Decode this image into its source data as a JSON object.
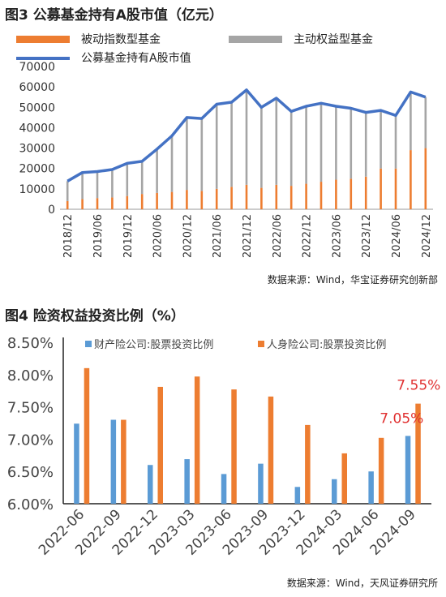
{
  "chart_data": [
    {
      "type": "bar",
      "title": "图3 公募基金持有A股市值（亿元）",
      "source": "数据来源：Wind，华宝证券研究创新部",
      "categories": [
        "2018/12",
        "2019/03",
        "2019/06",
        "2019/09",
        "2019/12",
        "2020/03",
        "2020/06",
        "2020/09",
        "2020/12",
        "2021/03",
        "2021/06",
        "2021/09",
        "2021/12",
        "2022/03",
        "2022/06",
        "2022/09",
        "2022/12",
        "2023/03",
        "2023/06",
        "2023/09",
        "2023/12",
        "2024/03",
        "2024/06",
        "2024/09",
        "2024/12"
      ],
      "tick_labels": [
        "2018/12",
        "2019/06",
        "2019/12",
        "2020/06",
        "2020/12",
        "2021/06",
        "2021/12",
        "2022/06",
        "2022/12",
        "2023/06",
        "2023/12",
        "2024/06",
        "2024/12"
      ],
      "ylim": [
        0,
        70000
      ],
      "yticks": [
        "0",
        "10000",
        "20000",
        "30000",
        "40000",
        "50000",
        "60000",
        "70000"
      ],
      "series": [
        {
          "name": "被动指数型基金",
          "kind": "bar",
          "color": "#ED7D31",
          "values": [
            4000,
            5000,
            5500,
            5800,
            6500,
            7500,
            8000,
            8500,
            9500,
            9000,
            10000,
            11000,
            12000,
            10500,
            12000,
            11500,
            12500,
            13500,
            14500,
            15000,
            16000,
            20000,
            20000,
            29000,
            30000
          ]
        },
        {
          "name": "主动权益型基金",
          "kind": "bar",
          "color": "#A5A5A5",
          "values": [
            9800,
            13000,
            13200,
            13800,
            16000,
            16000,
            21500,
            28000,
            35500,
            35000,
            41500,
            41500,
            46500,
            39500,
            42500,
            36500,
            38000,
            38500,
            36000,
            34500,
            31500,
            28500,
            26000,
            28500,
            25000
          ]
        },
        {
          "name": "公募基金持有A股市值",
          "kind": "line",
          "color": "#4472C4",
          "values": [
            13800,
            18000,
            18500,
            19500,
            22500,
            23500,
            29500,
            36000,
            45000,
            44500,
            51500,
            52500,
            58500,
            50000,
            54500,
            48000,
            50500,
            52000,
            50500,
            49500,
            47500,
            48500,
            46000,
            57500,
            55000
          ]
        }
      ]
    },
    {
      "type": "bar",
      "title": "图4 险资权益投资比例（%）",
      "source": "数据来源：Wind，天风证券研究所",
      "categories": [
        "2022-06",
        "2022-09",
        "2022-12",
        "2023-03",
        "2023-06",
        "2023-09",
        "2023-12",
        "2024-03",
        "2024-06",
        "2024-09"
      ],
      "ylim": [
        6.0,
        8.5
      ],
      "yticks": [
        "6.00%",
        "6.50%",
        "7.00%",
        "7.50%",
        "8.00%",
        "8.50%"
      ],
      "series": [
        {
          "name": "财产险公司:股票投资比例",
          "color": "#5B9BD5",
          "values": [
            7.24,
            7.3,
            6.6,
            6.69,
            6.46,
            6.62,
            6.26,
            6.38,
            6.5,
            7.05
          ]
        },
        {
          "name": "人身险公司:股票投资比例",
          "color": "#ED7D31",
          "values": [
            8.1,
            7.3,
            7.81,
            7.97,
            7.77,
            7.66,
            7.22,
            6.78,
            7.02,
            7.55
          ]
        }
      ],
      "annotations": [
        {
          "text": "7.05%",
          "color": "#E03030"
        },
        {
          "text": "7.55%",
          "color": "#E03030"
        }
      ]
    }
  ]
}
